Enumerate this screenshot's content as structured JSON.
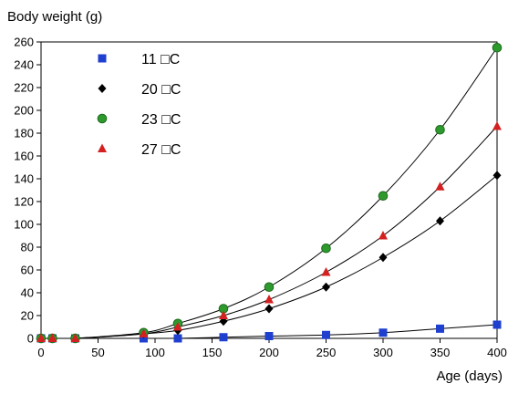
{
  "chart_data": {
    "type": "scatter",
    "xlabel": "Age (days)",
    "ylabel": "Body weight (g)",
    "xlim": [
      0,
      400
    ],
    "ylim": [
      0,
      260
    ],
    "xticks": [
      0,
      50,
      100,
      150,
      200,
      250,
      300,
      350,
      400
    ],
    "yticks": [
      0,
      20,
      40,
      60,
      80,
      100,
      120,
      140,
      160,
      180,
      200,
      220,
      240,
      260
    ],
    "grid": false,
    "legend_position": "top-left",
    "fitted_curves": true,
    "series": [
      {
        "name": "11 □C",
        "marker": "square",
        "color": "#1f3fcf",
        "x": [
          0,
          10,
          30,
          90,
          120,
          160,
          200,
          250,
          300,
          350,
          400
        ],
        "y": [
          0,
          0,
          0,
          0,
          0,
          1,
          2,
          3,
          5,
          8.5,
          12
        ]
      },
      {
        "name": "20 □C",
        "marker": "diamond",
        "color": "#000000",
        "x": [
          0,
          10,
          30,
          90,
          120,
          160,
          200,
          250,
          300,
          350,
          400
        ],
        "y": [
          0,
          0,
          0,
          4,
          7,
          15,
          26,
          45,
          71,
          103,
          143
        ]
      },
      {
        "name": "23 □C",
        "marker": "circle",
        "color": "#2e9a2e",
        "x": [
          0,
          10,
          30,
          90,
          120,
          160,
          200,
          250,
          300,
          350,
          400
        ],
        "y": [
          0,
          0,
          0,
          5,
          13,
          26,
          45,
          79,
          125,
          183,
          255
        ]
      },
      {
        "name": "27 □C",
        "marker": "triangle",
        "color": "#d42020",
        "x": [
          0,
          10,
          30,
          90,
          120,
          160,
          200,
          250,
          300,
          350,
          400
        ],
        "y": [
          0,
          0,
          0,
          4,
          10,
          20,
          34,
          58,
          90,
          133,
          186
        ]
      }
    ]
  }
}
